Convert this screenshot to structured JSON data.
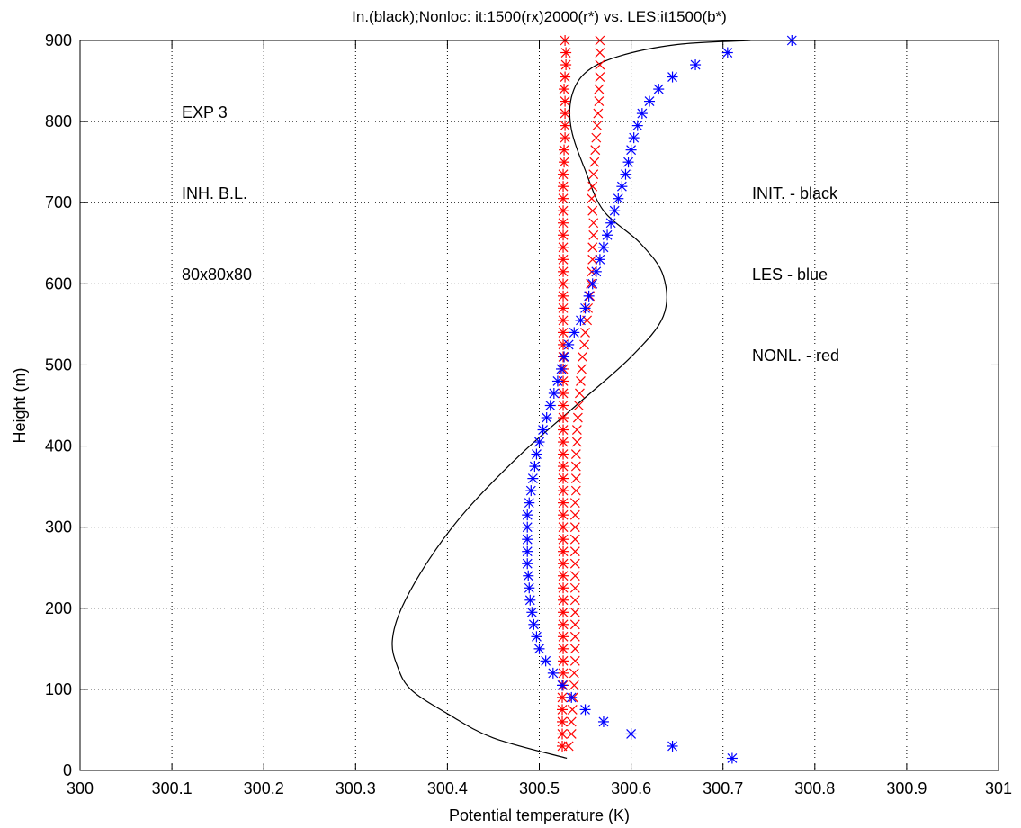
{
  "chart_data": {
    "type": "scatter",
    "title": "In.(black);Nonloc: it:1500(rx)2000(r*) vs. LES:it1500(b*)",
    "xlabel": "Potential temperature (K)",
    "ylabel": "Height (m)",
    "xlim": [
      300,
      301
    ],
    "ylim": [
      0,
      900
    ],
    "xticks": [
      "300",
      "300.1",
      "300.2",
      "300.3",
      "300.4",
      "300.5",
      "300.6",
      "300.7",
      "300.8",
      "300.9",
      "301"
    ],
    "yticks": [
      "0",
      "100",
      "200",
      "300",
      "400",
      "500",
      "600",
      "700",
      "800",
      "900"
    ],
    "grid": true,
    "annotations": {
      "exp": "EXP 3",
      "bl": "INH. B.L.",
      "grid_size": "80x80x80",
      "legend_init": "INIT. - black",
      "legend_les": "LES - blue",
      "legend_nonl": "NONL. - red"
    },
    "colors": {
      "init": "#000000",
      "les": "#0000ff",
      "nonl": "#ff0000"
    },
    "series": [
      {
        "marker": "line",
        "color": "#000000",
        "points": [
          [
            300.53,
            15
          ],
          [
            300.45,
            40
          ],
          [
            300.4,
            70
          ],
          [
            300.36,
            100
          ],
          [
            300.345,
            130
          ],
          [
            300.34,
            160
          ],
          [
            300.35,
            200
          ],
          [
            300.38,
            260
          ],
          [
            300.42,
            320
          ],
          [
            300.48,
            390
          ],
          [
            300.54,
            450
          ],
          [
            300.6,
            510
          ],
          [
            300.635,
            560
          ],
          [
            300.635,
            610
          ],
          [
            300.61,
            650
          ],
          [
            300.57,
            690
          ],
          [
            300.55,
            740
          ],
          [
            300.535,
            790
          ],
          [
            300.535,
            830
          ],
          [
            300.55,
            860
          ],
          [
            300.585,
            880
          ],
          [
            300.65,
            895
          ],
          [
            300.73,
            900
          ]
        ]
      },
      {
        "marker": "x",
        "color": "#ff0000",
        "points": [
          [
            300.532,
            30
          ],
          [
            300.535,
            45
          ],
          [
            300.535,
            60
          ],
          [
            300.536,
            75
          ],
          [
            300.537,
            90
          ],
          [
            300.538,
            105
          ],
          [
            300.538,
            120
          ],
          [
            300.539,
            135
          ],
          [
            300.539,
            150
          ],
          [
            300.539,
            165
          ],
          [
            300.539,
            180
          ],
          [
            300.539,
            195
          ],
          [
            300.539,
            210
          ],
          [
            300.539,
            225
          ],
          [
            300.539,
            240
          ],
          [
            300.539,
            255
          ],
          [
            300.539,
            270
          ],
          [
            300.539,
            285
          ],
          [
            300.539,
            300
          ],
          [
            300.539,
            315
          ],
          [
            300.539,
            330
          ],
          [
            300.54,
            345
          ],
          [
            300.54,
            360
          ],
          [
            300.54,
            375
          ],
          [
            300.54,
            390
          ],
          [
            300.541,
            405
          ],
          [
            300.541,
            420
          ],
          [
            300.542,
            435
          ],
          [
            300.543,
            450
          ],
          [
            300.544,
            465
          ],
          [
            300.545,
            480
          ],
          [
            300.546,
            495
          ],
          [
            300.547,
            510
          ],
          [
            300.549,
            525
          ],
          [
            300.55,
            540
          ],
          [
            300.552,
            555
          ],
          [
            300.553,
            570
          ],
          [
            300.555,
            585
          ],
          [
            300.556,
            600
          ],
          [
            300.557,
            615
          ],
          [
            300.558,
            630
          ],
          [
            300.558,
            645
          ],
          [
            300.559,
            660
          ],
          [
            300.559,
            675
          ],
          [
            300.558,
            690
          ],
          [
            300.557,
            705
          ],
          [
            300.558,
            720
          ],
          [
            300.559,
            735
          ],
          [
            300.56,
            750
          ],
          [
            300.561,
            765
          ],
          [
            300.562,
            780
          ],
          [
            300.563,
            795
          ],
          [
            300.564,
            810
          ],
          [
            300.565,
            825
          ],
          [
            300.565,
            840
          ],
          [
            300.566,
            855
          ],
          [
            300.566,
            870
          ],
          [
            300.566,
            885
          ],
          [
            300.566,
            900
          ]
        ]
      },
      {
        "marker": "*",
        "color": "#ff0000",
        "points": [
          [
            300.525,
            30
          ],
          [
            300.525,
            45
          ],
          [
            300.525,
            60
          ],
          [
            300.525,
            75
          ],
          [
            300.525,
            90
          ],
          [
            300.526,
            105
          ],
          [
            300.526,
            120
          ],
          [
            300.526,
            135
          ],
          [
            300.526,
            150
          ],
          [
            300.526,
            165
          ],
          [
            300.526,
            180
          ],
          [
            300.526,
            195
          ],
          [
            300.526,
            210
          ],
          [
            300.526,
            225
          ],
          [
            300.526,
            240
          ],
          [
            300.526,
            255
          ],
          [
            300.526,
            270
          ],
          [
            300.526,
            285
          ],
          [
            300.526,
            300
          ],
          [
            300.526,
            315
          ],
          [
            300.526,
            330
          ],
          [
            300.526,
            345
          ],
          [
            300.526,
            360
          ],
          [
            300.526,
            375
          ],
          [
            300.526,
            390
          ],
          [
            300.526,
            405
          ],
          [
            300.526,
            420
          ],
          [
            300.526,
            435
          ],
          [
            300.526,
            450
          ],
          [
            300.526,
            465
          ],
          [
            300.526,
            480
          ],
          [
            300.526,
            495
          ],
          [
            300.526,
            510
          ],
          [
            300.526,
            525
          ],
          [
            300.526,
            540
          ],
          [
            300.526,
            555
          ],
          [
            300.526,
            570
          ],
          [
            300.526,
            585
          ],
          [
            300.526,
            600
          ],
          [
            300.526,
            615
          ],
          [
            300.526,
            630
          ],
          [
            300.526,
            645
          ],
          [
            300.526,
            660
          ],
          [
            300.526,
            675
          ],
          [
            300.526,
            690
          ],
          [
            300.526,
            705
          ],
          [
            300.526,
            720
          ],
          [
            300.526,
            735
          ],
          [
            300.527,
            750
          ],
          [
            300.527,
            765
          ],
          [
            300.528,
            780
          ],
          [
            300.528,
            795
          ],
          [
            300.528,
            810
          ],
          [
            300.528,
            825
          ],
          [
            300.527,
            840
          ],
          [
            300.528,
            855
          ],
          [
            300.529,
            870
          ],
          [
            300.529,
            885
          ],
          [
            300.528,
            900
          ]
        ]
      },
      {
        "marker": "*",
        "color": "#0000ff",
        "points": [
          [
            300.71,
            15
          ],
          [
            300.645,
            30
          ],
          [
            300.6,
            45
          ],
          [
            300.57,
            60
          ],
          [
            300.55,
            75
          ],
          [
            300.535,
            90
          ],
          [
            300.525,
            105
          ],
          [
            300.515,
            120
          ],
          [
            300.507,
            135
          ],
          [
            300.5,
            150
          ],
          [
            300.497,
            165
          ],
          [
            300.494,
            180
          ],
          [
            300.492,
            195
          ],
          [
            300.49,
            210
          ],
          [
            300.489,
            225
          ],
          [
            300.488,
            240
          ],
          [
            300.487,
            255
          ],
          [
            300.487,
            270
          ],
          [
            300.487,
            285
          ],
          [
            300.487,
            300
          ],
          [
            300.487,
            315
          ],
          [
            300.489,
            330
          ],
          [
            300.491,
            345
          ],
          [
            300.493,
            360
          ],
          [
            300.495,
            375
          ],
          [
            300.497,
            390
          ],
          [
            300.5,
            405
          ],
          [
            300.504,
            420
          ],
          [
            300.508,
            435
          ],
          [
            300.512,
            450
          ],
          [
            300.516,
            465
          ],
          [
            300.52,
            480
          ],
          [
            300.524,
            495
          ],
          [
            300.527,
            510
          ],
          [
            300.532,
            525
          ],
          [
            300.538,
            540
          ],
          [
            300.545,
            555
          ],
          [
            300.55,
            570
          ],
          [
            300.554,
            585
          ],
          [
            300.558,
            600
          ],
          [
            300.562,
            615
          ],
          [
            300.566,
            630
          ],
          [
            300.57,
            645
          ],
          [
            300.574,
            660
          ],
          [
            300.578,
            675
          ],
          [
            300.582,
            690
          ],
          [
            300.586,
            705
          ],
          [
            300.59,
            720
          ],
          [
            300.594,
            735
          ],
          [
            300.597,
            750
          ],
          [
            300.6,
            765
          ],
          [
            300.603,
            780
          ],
          [
            300.607,
            795
          ],
          [
            300.612,
            810
          ],
          [
            300.62,
            825
          ],
          [
            300.63,
            840
          ],
          [
            300.645,
            855
          ],
          [
            300.67,
            870
          ],
          [
            300.705,
            885
          ],
          [
            300.775,
            900
          ]
        ]
      }
    ]
  }
}
